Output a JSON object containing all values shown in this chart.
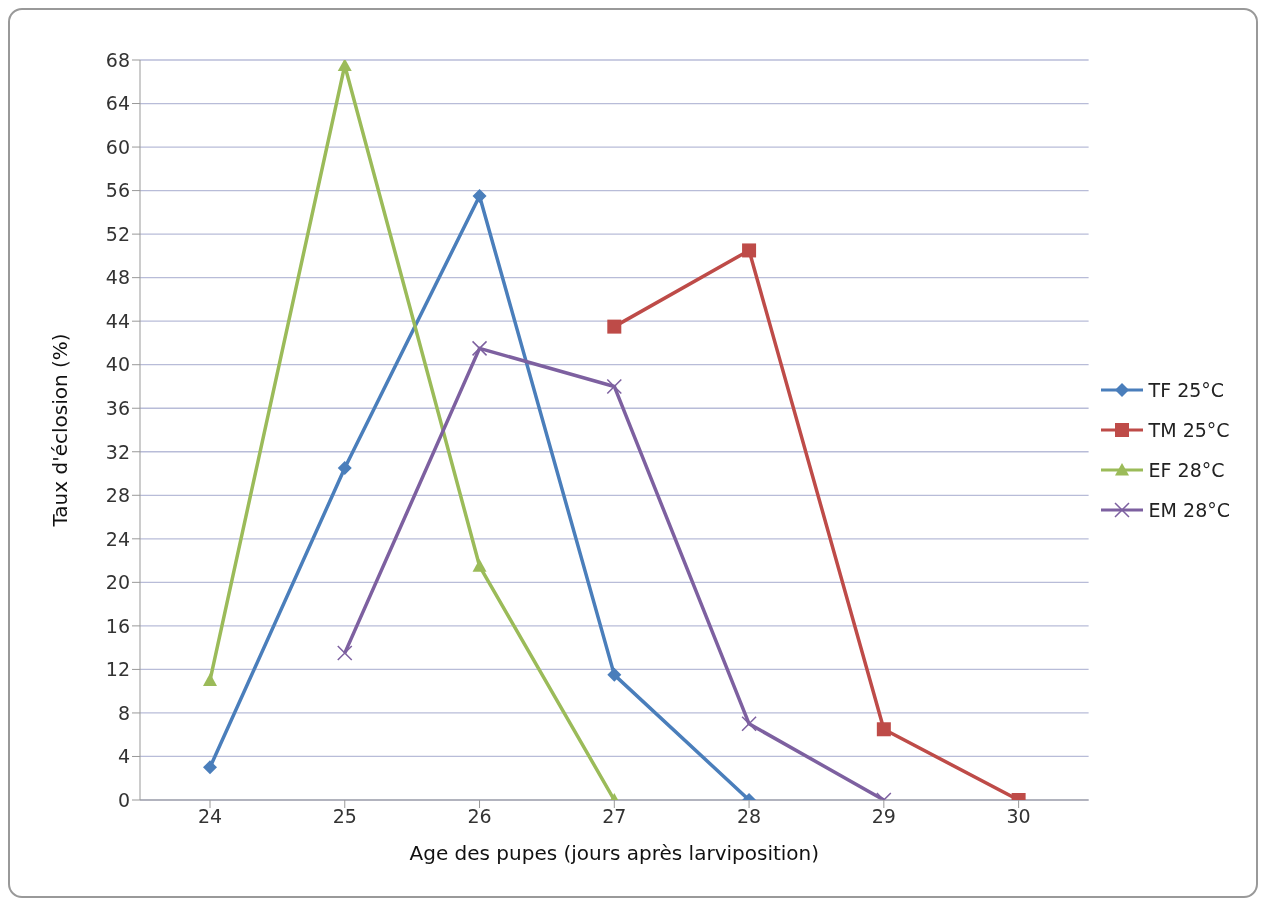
{
  "chart_data": {
    "type": "line",
    "xlabel": "Age des pupes (jours après larviposition)",
    "ylabel": "Taux d'éclosion (%)",
    "categories": [
      "24",
      "25",
      "26",
      "27",
      "28",
      "29",
      "30"
    ],
    "series": [
      {
        "name": "TF 25°C",
        "color": "#4a7ebb",
        "marker": "diamond",
        "values": [
          3,
          30.5,
          55.5,
          11.5,
          0,
          null,
          null
        ]
      },
      {
        "name": "TM 25°C",
        "color": "#be4b48",
        "marker": "square",
        "values": [
          null,
          null,
          null,
          43.5,
          50.5,
          6.5,
          0
        ]
      },
      {
        "name": "EF 28°C",
        "color": "#9bbb59",
        "marker": "triangle",
        "values": [
          11,
          67.5,
          21.5,
          0,
          null,
          null,
          null
        ]
      },
      {
        "name": "EM 28°C",
        "color": "#7d60a0",
        "marker": "cross",
        "values": [
          null,
          13.5,
          41.5,
          38,
          7,
          0,
          null
        ]
      }
    ],
    "ylim": [
      0,
      68
    ],
    "yticks": [
      0,
      4,
      8,
      12,
      16,
      20,
      24,
      28,
      32,
      36,
      40,
      44,
      48,
      52,
      56,
      60,
      64,
      68
    ],
    "grid": "y",
    "legend": "right",
    "line_style": "solid"
  }
}
